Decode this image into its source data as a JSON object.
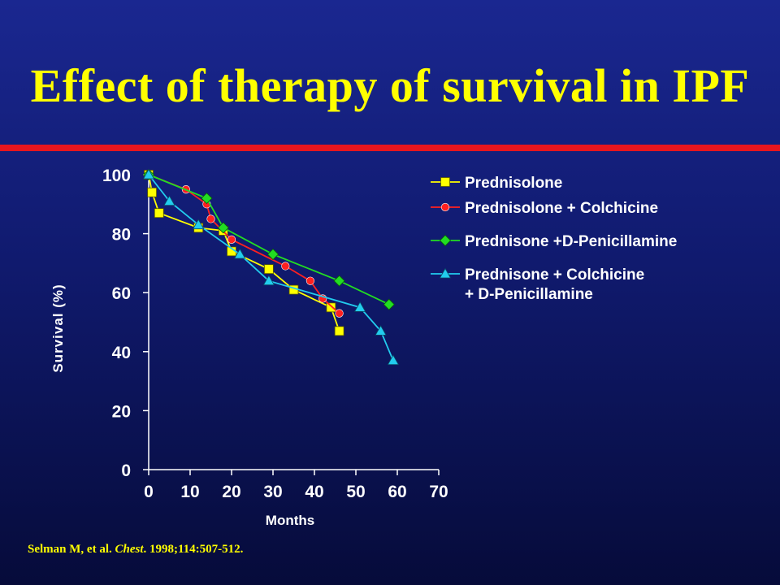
{
  "slide": {
    "title": "Effect of therapy of survival in IPF",
    "citation": {
      "authors": "Selman M, et al.",
      "journal": "Chest",
      "details": ". 1998;114:507-512."
    }
  },
  "colors": {
    "title": "#ffff00",
    "rule": "#e8161e",
    "axis": "#ffffff"
  },
  "chart_data": {
    "type": "line",
    "xlabel": "Months",
    "ylabel": "Survival (%)",
    "xlim": [
      0,
      70
    ],
    "ylim": [
      0,
      100
    ],
    "xticks": [
      0,
      10,
      20,
      30,
      40,
      50,
      60,
      70
    ],
    "yticks": [
      0,
      20,
      40,
      60,
      80,
      100
    ],
    "grid": false,
    "legend_position": "right",
    "series": [
      {
        "name": "Prednisolone",
        "color": "#ffff00",
        "marker": "square",
        "points": [
          [
            0,
            100
          ],
          [
            0.8,
            94
          ],
          [
            2.5,
            87
          ],
          [
            12,
            82
          ],
          [
            18,
            81
          ],
          [
            20,
            74
          ],
          [
            29,
            68
          ],
          [
            35,
            61
          ],
          [
            44,
            55
          ],
          [
            46,
            47
          ]
        ]
      },
      {
        "name": "Prednisolone + Colchicine",
        "color": "#ff2020",
        "marker": "circle",
        "points": [
          [
            0,
            100
          ],
          [
            9,
            95
          ],
          [
            14,
            90
          ],
          [
            15,
            85
          ],
          [
            20,
            78
          ],
          [
            33,
            69
          ],
          [
            39,
            64
          ],
          [
            42,
            58
          ],
          [
            46,
            53
          ]
        ]
      },
      {
        "name": "Prednisone +D-Penicillamine",
        "color": "#22dd22",
        "marker": "diamond",
        "points": [
          [
            0,
            100
          ],
          [
            14,
            92
          ],
          [
            18,
            82
          ],
          [
            30,
            73
          ],
          [
            46,
            64
          ],
          [
            58,
            56
          ]
        ]
      },
      {
        "name": "Prednisone + Colchicine + D-Penicillamine",
        "name_lines": [
          "Prednisone + Colchicine",
          "+ D-Penicillamine"
        ],
        "color": "#22ccee",
        "marker": "triangle",
        "points": [
          [
            0,
            100
          ],
          [
            5,
            91
          ],
          [
            12,
            83
          ],
          [
            22,
            73
          ],
          [
            29,
            64
          ],
          [
            51,
            55
          ],
          [
            56,
            47
          ],
          [
            59,
            37
          ]
        ]
      }
    ]
  }
}
